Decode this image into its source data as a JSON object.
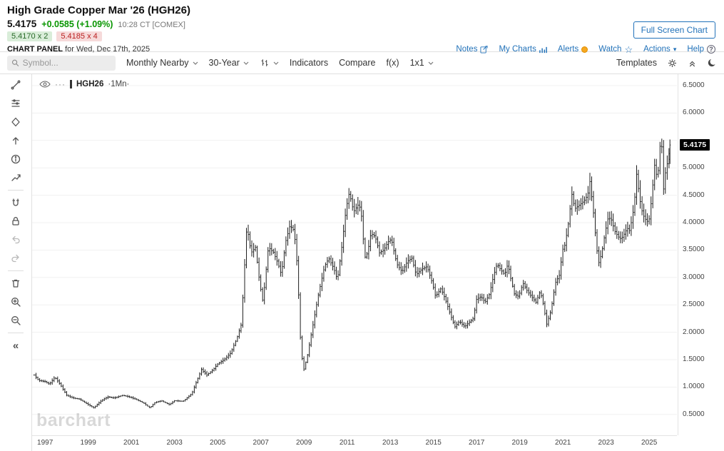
{
  "header": {
    "title": "High Grade Copper Mar '26 (HGH26)",
    "last": "5.4175",
    "change": "+0.0585 (+1.09%)",
    "session": "10:28 CT [COMEX]",
    "bid": "5.4170 x 2",
    "ask": "5.4185 x 4",
    "panel_label": "CHART PANEL",
    "panel_date": "for Wed, Dec 17th, 2025",
    "links": [
      "Notes",
      "My Charts",
      "Alerts",
      "Watch",
      "Actions",
      "Help"
    ],
    "fullscreen": "Full Screen Chart"
  },
  "toolbar": {
    "symbol_placeholder": "Symbol...",
    "contract": "Monthly Nearby",
    "range": "30-Year",
    "indicators": "Indicators",
    "compare": "Compare",
    "fx": "f(x)",
    "grid": "1x1",
    "templates": "Templates"
  },
  "sidebar_tools": [
    "trendline",
    "studies",
    "shapes",
    "arrow",
    "info",
    "measure",
    "magnet",
    "lock",
    "undo",
    "redo",
    "delete",
    "zoom-in",
    "zoom-out",
    "collapse"
  ],
  "legend": {
    "symbol": "HGH26",
    "interval_display": "·1Mn·"
  },
  "icons": {
    "collapse_sidebar": "«",
    "watch_star": "☆",
    "actions_caret": "▾",
    "more_options": "···",
    "help_mark": "?"
  },
  "watermark": "barchart",
  "chart_data": {
    "type": "bar",
    "title": "High Grade Copper Mar '26 (HGH26) monthly OHLC bars, 30-year view",
    "last_price": 5.4175,
    "last_price_label": "5.4175",
    "y_axis": {
      "min": 0.5,
      "max": 6.5,
      "step": 0.5,
      "format_decimals": 4
    },
    "x_axis": {
      "ticks": [
        1997,
        1999,
        2001,
        2003,
        2005,
        2007,
        2009,
        2011,
        2013,
        2015,
        2017,
        2019,
        2021,
        2023,
        2025
      ]
    },
    "bars_per_year": 12,
    "series_knots": [
      [
        1996.5,
        1.22
      ],
      [
        1996.7,
        1.12
      ],
      [
        1997.0,
        1.1
      ],
      [
        1997.2,
        1.05
      ],
      [
        1997.45,
        1.18
      ],
      [
        1997.7,
        1.05
      ],
      [
        1998.0,
        0.85
      ],
      [
        1998.3,
        0.8
      ],
      [
        1998.6,
        0.78
      ],
      [
        1999.0,
        0.68
      ],
      [
        1999.25,
        0.62
      ],
      [
        1999.6,
        0.75
      ],
      [
        1999.9,
        0.82
      ],
      [
        2000.2,
        0.8
      ],
      [
        2000.6,
        0.85
      ],
      [
        2000.9,
        0.82
      ],
      [
        2001.2,
        0.78
      ],
      [
        2001.6,
        0.7
      ],
      [
        2001.85,
        0.62
      ],
      [
        2002.1,
        0.72
      ],
      [
        2002.4,
        0.75
      ],
      [
        2002.75,
        0.68
      ],
      [
        2003.0,
        0.75
      ],
      [
        2003.4,
        0.74
      ],
      [
        2003.8,
        0.88
      ],
      [
        2004.0,
        1.08
      ],
      [
        2004.25,
        1.32
      ],
      [
        2004.5,
        1.22
      ],
      [
        2004.8,
        1.32
      ],
      [
        2005.0,
        1.42
      ],
      [
        2005.3,
        1.5
      ],
      [
        2005.6,
        1.62
      ],
      [
        2005.9,
        1.9
      ],
      [
        2006.1,
        2.15
      ],
      [
        2006.35,
        3.95
      ],
      [
        2006.55,
        3.45
      ],
      [
        2006.75,
        3.55
      ],
      [
        2006.95,
        2.9
      ],
      [
        2007.1,
        2.55
      ],
      [
        2007.35,
        3.55
      ],
      [
        2007.6,
        3.45
      ],
      [
        2007.8,
        3.25
      ],
      [
        2007.95,
        3.05
      ],
      [
        2008.15,
        3.65
      ],
      [
        2008.35,
        3.95
      ],
      [
        2008.55,
        3.85
      ],
      [
        2008.7,
        3.15
      ],
      [
        2008.85,
        1.75
      ],
      [
        2008.98,
        1.3
      ],
      [
        2009.15,
        1.55
      ],
      [
        2009.4,
        2.1
      ],
      [
        2009.65,
        2.65
      ],
      [
        2009.95,
        3.2
      ],
      [
        2010.15,
        3.35
      ],
      [
        2010.4,
        3.15
      ],
      [
        2010.55,
        2.95
      ],
      [
        2010.75,
        3.55
      ],
      [
        2010.95,
        4.25
      ],
      [
        2011.1,
        4.55
      ],
      [
        2011.3,
        4.2
      ],
      [
        2011.55,
        4.35
      ],
      [
        2011.7,
        4.05
      ],
      [
        2011.8,
        3.35
      ],
      [
        2011.95,
        3.45
      ],
      [
        2012.1,
        3.8
      ],
      [
        2012.3,
        3.75
      ],
      [
        2012.5,
        3.45
      ],
      [
        2012.7,
        3.5
      ],
      [
        2012.9,
        3.65
      ],
      [
        2013.05,
        3.7
      ],
      [
        2013.3,
        3.25
      ],
      [
        2013.55,
        3.1
      ],
      [
        2013.8,
        3.3
      ],
      [
        2014.0,
        3.35
      ],
      [
        2014.2,
        3.05
      ],
      [
        2014.45,
        3.15
      ],
      [
        2014.7,
        3.2
      ],
      [
        2014.95,
        2.9
      ],
      [
        2015.1,
        2.65
      ],
      [
        2015.35,
        2.8
      ],
      [
        2015.6,
        2.55
      ],
      [
        2015.85,
        2.25
      ],
      [
        2016.0,
        2.1
      ],
      [
        2016.2,
        2.2
      ],
      [
        2016.45,
        2.1
      ],
      [
        2016.7,
        2.2
      ],
      [
        2016.85,
        2.25
      ],
      [
        2017.0,
        2.6
      ],
      [
        2017.2,
        2.65
      ],
      [
        2017.4,
        2.55
      ],
      [
        2017.6,
        2.7
      ],
      [
        2017.8,
        3.05
      ],
      [
        2017.95,
        3.25
      ],
      [
        2018.1,
        3.15
      ],
      [
        2018.3,
        3.05
      ],
      [
        2018.45,
        3.25
      ],
      [
        2018.6,
        2.95
      ],
      [
        2018.75,
        2.7
      ],
      [
        2018.95,
        2.65
      ],
      [
        2019.15,
        2.9
      ],
      [
        2019.35,
        2.75
      ],
      [
        2019.55,
        2.65
      ],
      [
        2019.75,
        2.55
      ],
      [
        2019.95,
        2.75
      ],
      [
        2020.1,
        2.5
      ],
      [
        2020.25,
        2.15
      ],
      [
        2020.45,
        2.4
      ],
      [
        2020.65,
        2.9
      ],
      [
        2020.85,
        3.05
      ],
      [
        2020.98,
        3.5
      ],
      [
        2021.1,
        3.6
      ],
      [
        2021.3,
        4.1
      ],
      [
        2021.4,
        4.55
      ],
      [
        2021.55,
        4.25
      ],
      [
        2021.7,
        4.3
      ],
      [
        2021.85,
        4.35
      ],
      [
        2021.98,
        4.4
      ],
      [
        2022.15,
        4.5
      ],
      [
        2022.25,
        4.75
      ],
      [
        2022.4,
        4.25
      ],
      [
        2022.55,
        3.6
      ],
      [
        2022.65,
        3.25
      ],
      [
        2022.8,
        3.45
      ],
      [
        2022.95,
        3.8
      ],
      [
        2023.1,
        4.1
      ],
      [
        2023.25,
        4.05
      ],
      [
        2023.4,
        3.85
      ],
      [
        2023.55,
        3.75
      ],
      [
        2023.7,
        3.7
      ],
      [
        2023.85,
        3.8
      ],
      [
        2023.98,
        3.9
      ],
      [
        2024.1,
        3.85
      ],
      [
        2024.3,
        4.3
      ],
      [
        2024.42,
        4.9
      ],
      [
        2024.55,
        4.45
      ],
      [
        2024.7,
        4.15
      ],
      [
        2024.85,
        4.05
      ],
      [
        2024.98,
        4.0
      ],
      [
        2025.1,
        4.4
      ],
      [
        2025.25,
        5.05
      ],
      [
        2025.35,
        4.85
      ],
      [
        2025.45,
        5.0
      ],
      [
        2025.52,
        5.55
      ],
      [
        2025.56,
        5.85
      ],
      [
        2025.63,
        4.45
      ],
      [
        2025.72,
        4.85
      ],
      [
        2025.82,
        5.05
      ],
      [
        2025.9,
        5.2
      ],
      [
        2025.96,
        5.4175
      ]
    ]
  }
}
